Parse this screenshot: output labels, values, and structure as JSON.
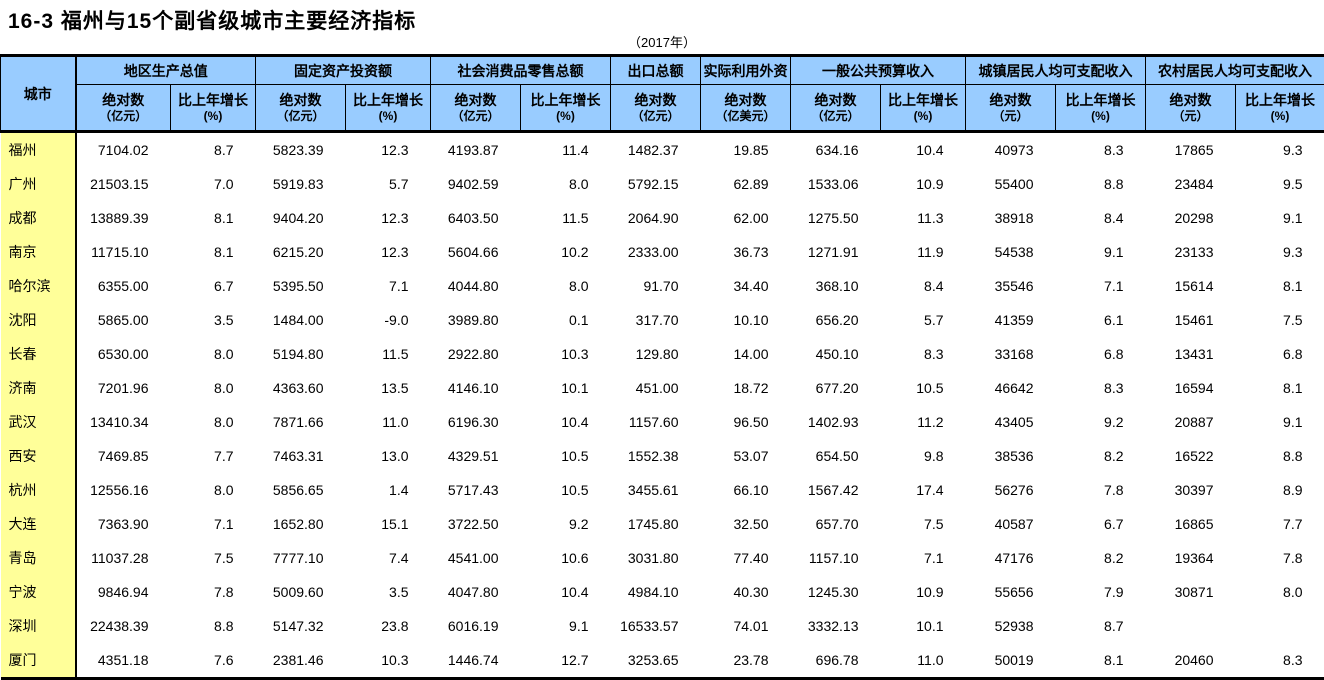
{
  "page": {
    "title": "16-3 福州与15个副省级城市主要经济指标",
    "subtitle": "（2017年）"
  },
  "colors": {
    "header_bg": "#99CCFF",
    "city_column_bg": "#FFFF99",
    "border": "#000000",
    "text": "#000000"
  },
  "table": {
    "corner_header": "城市",
    "groups": [
      {
        "label": "地区生产总值",
        "sub": [
          {
            "l1": "绝对数",
            "l2": "（亿元）"
          },
          {
            "l1": "比上年增长",
            "l2": "(%)"
          }
        ]
      },
      {
        "label": "固定资产投资额",
        "sub": [
          {
            "l1": "绝对数",
            "l2": "（亿元）"
          },
          {
            "l1": "比上年增长",
            "l2": "(%)"
          }
        ]
      },
      {
        "label": "社会消费品零售总额",
        "sub": [
          {
            "l1": "绝对数",
            "l2": "（亿元）"
          },
          {
            "l1": "比上年增长",
            "l2": "(%)"
          }
        ]
      },
      {
        "label": "出口总额",
        "sub": [
          {
            "l1": "绝对数",
            "l2": "（亿元）"
          }
        ]
      },
      {
        "label": "实际利用外资",
        "sub": [
          {
            "l1": "绝对数",
            "l2": "（亿美元）"
          }
        ]
      },
      {
        "label": "一般公共预算收入",
        "sub": [
          {
            "l1": "绝对数",
            "l2": "（亿元）"
          },
          {
            "l1": "比上年增长",
            "l2": "(%)"
          }
        ]
      },
      {
        "label": "城镇居民人均可支配收入",
        "sub": [
          {
            "l1": "绝对数",
            "l2": "（元）"
          },
          {
            "l1": "比上年增长",
            "l2": "(%)"
          }
        ]
      },
      {
        "label": "农村居民人均可支配收入",
        "sub": [
          {
            "l1": "绝对数",
            "l2": "（元）"
          },
          {
            "l1": "比上年增长",
            "l2": "(%)"
          }
        ]
      }
    ],
    "rows": [
      {
        "city": "福州",
        "values": [
          "7104.02",
          "8.7",
          "5823.39",
          "12.3",
          "4193.87",
          "11.4",
          "1482.37",
          "19.85",
          "634.16",
          "10.4",
          "40973",
          "8.3",
          "17865",
          "9.3"
        ]
      },
      {
        "city": "广州",
        "values": [
          "21503.15",
          "7.0",
          "5919.83",
          "5.7",
          "9402.59",
          "8.0",
          "5792.15",
          "62.89",
          "1533.06",
          "10.9",
          "55400",
          "8.8",
          "23484",
          "9.5"
        ]
      },
      {
        "city": "成都",
        "values": [
          "13889.39",
          "8.1",
          "9404.20",
          "12.3",
          "6403.50",
          "11.5",
          "2064.90",
          "62.00",
          "1275.50",
          "11.3",
          "38918",
          "8.4",
          "20298",
          "9.1"
        ]
      },
      {
        "city": "南京",
        "values": [
          "11715.10",
          "8.1",
          "6215.20",
          "12.3",
          "5604.66",
          "10.2",
          "2333.00",
          "36.73",
          "1271.91",
          "11.9",
          "54538",
          "9.1",
          "23133",
          "9.3"
        ]
      },
      {
        "city": "哈尔滨",
        "values": [
          "6355.00",
          "6.7",
          "5395.50",
          "7.1",
          "4044.80",
          "8.0",
          "91.70",
          "34.40",
          "368.10",
          "8.4",
          "35546",
          "7.1",
          "15614",
          "8.1"
        ]
      },
      {
        "city": "沈阳",
        "values": [
          "5865.00",
          "3.5",
          "1484.00",
          "-9.0",
          "3989.80",
          "0.1",
          "317.70",
          "10.10",
          "656.20",
          "5.7",
          "41359",
          "6.1",
          "15461",
          "7.5"
        ]
      },
      {
        "city": "长春",
        "values": [
          "6530.00",
          "8.0",
          "5194.80",
          "11.5",
          "2922.80",
          "10.3",
          "129.80",
          "14.00",
          "450.10",
          "8.3",
          "33168",
          "6.8",
          "13431",
          "6.8"
        ]
      },
      {
        "city": "济南",
        "values": [
          "7201.96",
          "8.0",
          "4363.60",
          "13.5",
          "4146.10",
          "10.1",
          "451.00",
          "18.72",
          "677.20",
          "10.5",
          "46642",
          "8.3",
          "16594",
          "8.1"
        ]
      },
      {
        "city": "武汉",
        "values": [
          "13410.34",
          "8.0",
          "7871.66",
          "11.0",
          "6196.30",
          "10.4",
          "1157.60",
          "96.50",
          "1402.93",
          "11.2",
          "43405",
          "9.2",
          "20887",
          "9.1"
        ]
      },
      {
        "city": "西安",
        "values": [
          "7469.85",
          "7.7",
          "7463.31",
          "13.0",
          "4329.51",
          "10.5",
          "1552.38",
          "53.07",
          "654.50",
          "9.8",
          "38536",
          "8.2",
          "16522",
          "8.8"
        ]
      },
      {
        "city": "杭州",
        "values": [
          "12556.16",
          "8.0",
          "5856.65",
          "1.4",
          "5717.43",
          "10.5",
          "3455.61",
          "66.10",
          "1567.42",
          "17.4",
          "56276",
          "7.8",
          "30397",
          "8.9"
        ]
      },
      {
        "city": "大连",
        "values": [
          "7363.90",
          "7.1",
          "1652.80",
          "15.1",
          "3722.50",
          "9.2",
          "1745.80",
          "32.50",
          "657.70",
          "7.5",
          "40587",
          "6.7",
          "16865",
          "7.7"
        ]
      },
      {
        "city": "青岛",
        "values": [
          "11037.28",
          "7.5",
          "7777.10",
          "7.4",
          "4541.00",
          "10.6",
          "3031.80",
          "77.40",
          "1157.10",
          "7.1",
          "47176",
          "8.2",
          "19364",
          "7.8"
        ]
      },
      {
        "city": "宁波",
        "values": [
          "9846.94",
          "7.8",
          "5009.60",
          "3.5",
          "4047.80",
          "10.4",
          "4984.10",
          "40.30",
          "1245.30",
          "10.9",
          "55656",
          "7.9",
          "30871",
          "8.0"
        ]
      },
      {
        "city": "深圳",
        "values": [
          "22438.39",
          "8.8",
          "5147.32",
          "23.8",
          "6016.19",
          "9.1",
          "16533.57",
          "74.01",
          "3332.13",
          "10.1",
          "52938",
          "8.7",
          "",
          ""
        ]
      },
      {
        "city": "厦门",
        "values": [
          "4351.18",
          "7.6",
          "2381.46",
          "10.3",
          "1446.74",
          "12.7",
          "3253.65",
          "23.78",
          "696.78",
          "11.0",
          "50019",
          "8.1",
          "20460",
          "8.3"
        ]
      }
    ]
  }
}
